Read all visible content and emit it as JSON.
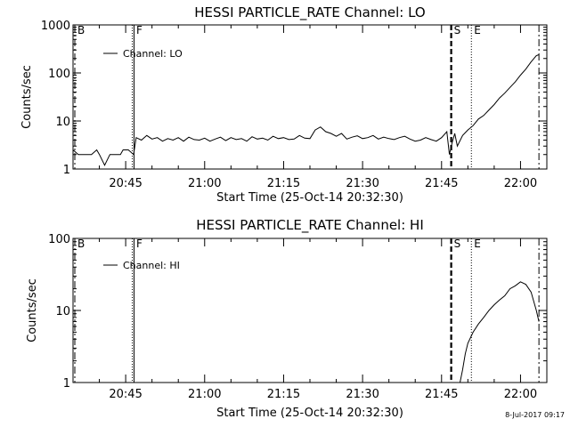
{
  "chart_data": [
    {
      "type": "line",
      "title": "HESSI PARTICLE_RATE Channel: LO",
      "ylabel": "Counts/sec",
      "xlabel": "Start Time (25-Oct-14 20:32:30)",
      "y_scale": "log",
      "ylim": [
        1,
        1000
      ],
      "y_ticks": [
        {
          "value": 1,
          "label": "1"
        },
        {
          "value": 10,
          "label": "10"
        },
        {
          "value": 100,
          "label": "100"
        },
        {
          "value": 1000,
          "label": "1000"
        }
      ],
      "xlim": [
        "20:35",
        "22:05"
      ],
      "x_ticks": [
        "20:45",
        "21:00",
        "21:15",
        "21:30",
        "21:45",
        "22:00"
      ],
      "legend": {
        "entries": [
          "Channel: LO"
        ],
        "position": "top-left"
      },
      "markers": [
        {
          "label": "B",
          "time": "20:32:30",
          "style": "dash-dot"
        },
        {
          "label": "F",
          "time": "20:46:30",
          "style": "dotted-solid"
        },
        {
          "label": "S",
          "time": "21:46:50",
          "style": "dashed"
        },
        {
          "label": "E",
          "time": "21:50:40",
          "style": "dotted"
        },
        {
          "label": "",
          "time": "22:03:30",
          "style": "dash-dot"
        }
      ],
      "series": [
        {
          "name": "Channel: LO",
          "x": [
            "20:32:30",
            "20:33:30",
            "20:34:00",
            "20:35:00",
            "20:36:00",
            "20:37:00",
            "20:38:30",
            "20:39:30",
            "20:40:00",
            "20:41:00",
            "20:42:00",
            "20:43:00",
            "20:44:00",
            "20:44:30",
            "20:45:30",
            "20:46:30",
            "20:47:00",
            "20:48:00",
            "20:49:00",
            "20:50:00",
            "20:51:00",
            "20:52:00",
            "20:53:00",
            "20:54:00",
            "20:55:00",
            "20:56:00",
            "20:57:00",
            "20:58:00",
            "20:59:00",
            "21:00:00",
            "21:01:00",
            "21:02:00",
            "21:03:00",
            "21:04:00",
            "21:05:00",
            "21:06:00",
            "21:07:00",
            "21:08:00",
            "21:09:00",
            "21:10:00",
            "21:11:00",
            "21:12:00",
            "21:13:00",
            "21:14:00",
            "21:15:00",
            "21:16:00",
            "21:17:00",
            "21:18:00",
            "21:19:00",
            "21:20:00",
            "21:21:00",
            "21:22:00",
            "21:23:00",
            "21:24:00",
            "21:25:00",
            "21:26:00",
            "21:27:00",
            "21:28:00",
            "21:29:00",
            "21:30:00",
            "21:31:00",
            "21:32:00",
            "21:33:00",
            "21:34:00",
            "21:35:00",
            "21:36:00",
            "21:37:00",
            "21:38:00",
            "21:39:00",
            "21:40:00",
            "21:41:00",
            "21:42:00",
            "21:43:00",
            "21:44:00",
            "21:45:00",
            "21:46:00",
            "21:46:30",
            "21:47:00",
            "21:47:30",
            "21:48:00",
            "21:49:00",
            "21:50:00",
            "21:51:00",
            "21:52:00",
            "21:53:00",
            "21:54:00",
            "21:55:00",
            "21:56:00",
            "21:57:00",
            "21:58:00",
            "21:59:00",
            "22:00:00",
            "22:01:00",
            "22:02:00",
            "22:03:00",
            "22:03:30"
          ],
          "y": [
            3,
            2,
            2,
            2.5,
            2,
            2,
            2,
            2.5,
            2,
            1.2,
            2,
            2,
            2,
            2.5,
            2.5,
            2,
            4.5,
            4,
            5,
            4.2,
            4.5,
            3.8,
            4.3,
            4,
            4.5,
            3.8,
            4.6,
            4.1,
            4,
            4.4,
            3.8,
            4.2,
            4.6,
            3.9,
            4.5,
            4.1,
            4.3,
            3.8,
            4.7,
            4.2,
            4.4,
            4,
            4.8,
            4.3,
            4.5,
            4.1,
            4.2,
            5,
            4.4,
            4.3,
            6.5,
            7.5,
            6,
            5.5,
            4.8,
            5.5,
            4.2,
            4.6,
            4.9,
            4.3,
            4.5,
            5,
            4.2,
            4.6,
            4.3,
            4.1,
            4.5,
            4.8,
            4.2,
            3.8,
            4,
            4.5,
            4.1,
            3.8,
            4.5,
            6,
            2,
            3.5,
            5.5,
            3,
            5,
            6.5,
            8,
            11,
            13,
            17,
            22,
            30,
            38,
            50,
            65,
            90,
            120,
            170,
            230,
            240
          ]
        }
      ]
    },
    {
      "type": "line",
      "title": "HESSI PARTICLE_RATE Channel: HI",
      "ylabel": "Counts/sec",
      "xlabel": "Start Time (25-Oct-14 20:32:30)",
      "y_scale": "log",
      "ylim": [
        1,
        100
      ],
      "y_ticks": [
        {
          "value": 1,
          "label": "1"
        },
        {
          "value": 10,
          "label": "10"
        },
        {
          "value": 100,
          "label": "100"
        }
      ],
      "xlim": [
        "20:35",
        "22:05"
      ],
      "x_ticks": [
        "20:45",
        "21:00",
        "21:15",
        "21:30",
        "21:45",
        "22:00"
      ],
      "legend": {
        "entries": [
          "Channel: HI"
        ],
        "position": "top-left"
      },
      "markers": [
        {
          "label": "B",
          "time": "20:32:30",
          "style": "dash-dot"
        },
        {
          "label": "F",
          "time": "20:46:30",
          "style": "dotted-solid"
        },
        {
          "label": "S",
          "time": "21:46:50",
          "style": "dashed"
        },
        {
          "label": "E",
          "time": "21:50:40",
          "style": "dotted"
        },
        {
          "label": "",
          "time": "22:03:30",
          "style": "dash-dot"
        }
      ],
      "series": [
        {
          "name": "Channel: HI",
          "x": [
            "21:48:30",
            "21:49:00",
            "21:49:30",
            "21:50:00",
            "21:51:00",
            "21:52:00",
            "21:53:00",
            "21:54:00",
            "21:55:00",
            "21:56:00",
            "21:57:00",
            "21:58:00",
            "21:59:00",
            "22:00:00",
            "22:01:00",
            "22:02:00",
            "22:03:00",
            "22:03:30"
          ],
          "y": [
            1,
            1.5,
            2.5,
            3.5,
            5,
            6.5,
            8,
            10,
            12,
            14,
            16,
            20,
            22,
            25,
            23,
            18,
            10,
            7
          ]
        }
      ]
    }
  ],
  "timestamp": "8-Jul-2017 09:17"
}
